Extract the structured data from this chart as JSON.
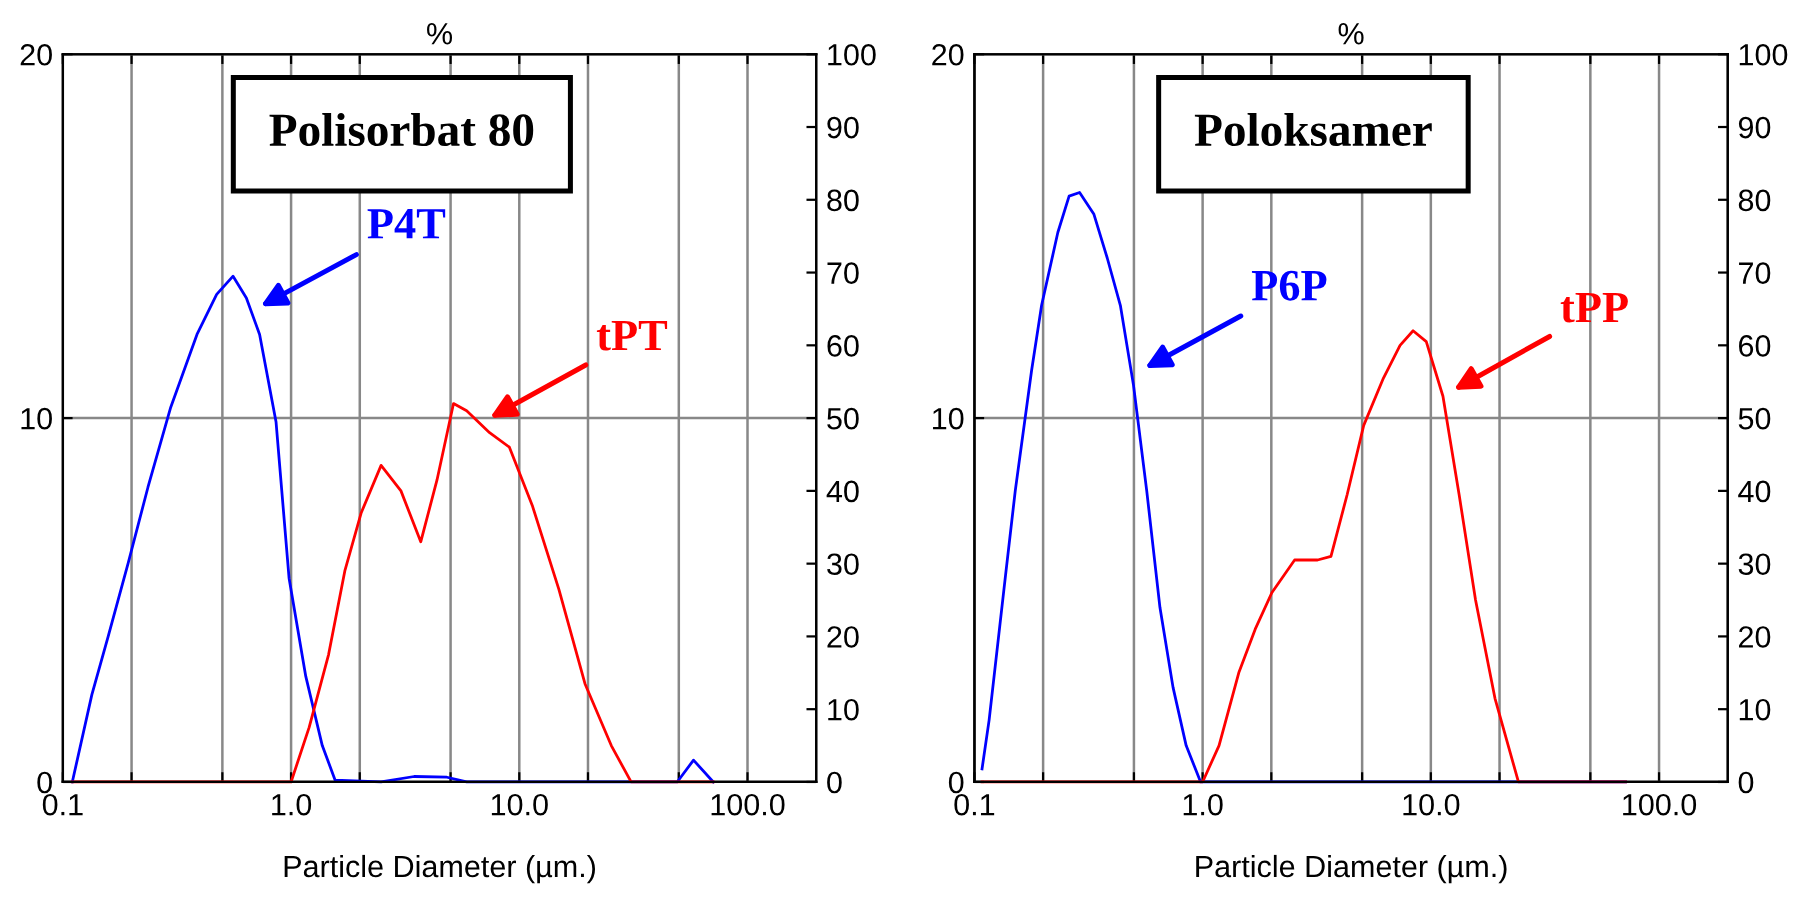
{
  "chart_data": [
    {
      "type": "line",
      "title": "Polisorbat 80",
      "xlabel": "Particle Diameter (µm.)",
      "log": "x",
      "xlim": [
        0.1,
        200
      ],
      "xticks": [
        {
          "value": 0.1,
          "label": "0.1"
        },
        {
          "value": 0.2,
          "label": null
        },
        {
          "value": 0.5,
          "label": null
        },
        {
          "value": 1,
          "label": "1.0"
        },
        {
          "value": 2,
          "label": null
        },
        {
          "value": 5,
          "label": null
        },
        {
          "value": 10,
          "label": "10.0"
        },
        {
          "value": 20,
          "label": null
        },
        {
          "value": 50,
          "label": null
        },
        {
          "value": 100,
          "label": "100.0"
        }
      ],
      "ylim": [
        0,
        20
      ],
      "yticks": [
        0,
        10,
        20
      ],
      "y2lim": [
        0,
        100
      ],
      "y2ticks": [
        0,
        10,
        20,
        30,
        40,
        50,
        60,
        70,
        80,
        90,
        100
      ],
      "grid": true,
      "marker": "none",
      "line_style": "solid",
      "series": [
        {
          "color": "#0000ff",
          "x": [
            0.11,
            0.134,
            0.158,
            0.193,
            0.236,
            0.297,
            0.387,
            0.472,
            0.557,
            0.637,
            0.728,
            0.859,
            0.98,
            1.16,
            1.37,
            1.56,
            2.48,
            3.46,
            4.82,
            5.88,
            49.2,
            58,
            70.8
          ],
          "values": [
            0,
            2.4,
            4.0,
            6.0,
            8.1,
            10.3,
            12.3,
            13.4,
            13.9,
            13.3,
            12.3,
            9.9,
            5.6,
            2.9,
            1.0,
            0.05,
            0,
            0.15,
            0.13,
            0,
            0,
            0.6,
            0
          ]
        },
        {
          "color": "#ff0000",
          "x": [
            0.11,
            1.0,
            1.2,
            1.46,
            1.72,
            2.03,
            2.48,
            3.03,
            3.7,
            4.36,
            5.15,
            5.88,
            7.41,
            9.05,
            11.4,
            14.9,
            19.4,
            25.3,
            30.9,
            70.8
          ],
          "values": [
            0,
            0,
            1.5,
            3.5,
            5.8,
            7.4,
            8.7,
            8.0,
            6.6,
            8.3,
            10.4,
            10.2,
            9.6,
            9.2,
            7.6,
            5.3,
            2.7,
            1.0,
            0,
            0
          ]
        }
      ],
      "annotations": [
        {
          "text": "P4T",
          "x": 0.7,
          "y": 13.0
        },
        {
          "text": "tPT",
          "x": 7.08,
          "y": 9.93
        },
        "%"
      ]
    },
    {
      "type": "line",
      "title": "Poloksamer",
      "xlabel": "Particle Diameter (µm.)",
      "log": "x",
      "xlim": [
        0.1,
        200
      ],
      "xticks": [
        {
          "value": 0.1,
          "label": "0.1"
        },
        {
          "value": 0.2,
          "label": null
        },
        {
          "value": 0.5,
          "label": null
        },
        {
          "value": 1,
          "label": "1.0"
        },
        {
          "value": 2,
          "label": null
        },
        {
          "value": 5,
          "label": null
        },
        {
          "value": 10,
          "label": "10.0"
        },
        {
          "value": 20,
          "label": null
        },
        {
          "value": 50,
          "label": null
        },
        {
          "value": 100,
          "label": "100.0"
        }
      ],
      "ylim": [
        0,
        20
      ],
      "yticks": [
        0,
        10,
        20
      ],
      "y2lim": [
        0,
        100
      ],
      "y2ticks": [
        0,
        10,
        20,
        30,
        40,
        50,
        60,
        70,
        80,
        90,
        100
      ],
      "grid": true,
      "marker": "none",
      "line_style": "solid",
      "series": [
        {
          "color": "#0000ff",
          "x": [
            0.108,
            0.116,
            0.137,
            0.151,
            0.178,
            0.197,
            0.232,
            0.26,
            0.289,
            0.334,
            0.382,
            0.436,
            0.498,
            0.569,
            0.65,
            0.742,
            0.847,
            0.98,
            71.3
          ],
          "values": [
            0.36,
            1.7,
            5.7,
            8.0,
            11.3,
            13.1,
            15.1,
            16.1,
            16.2,
            15.6,
            14.4,
            13.1,
            10.9,
            8.0,
            4.8,
            2.6,
            1.0,
            0,
            0
          ]
        },
        {
          "color": "#ff0000",
          "x": [
            0.108,
            1.0,
            1.18,
            1.44,
            1.7,
            2.01,
            2.53,
            3.19,
            3.65,
            4.3,
            5.08,
            6.2,
            7.33,
            8.36,
            9.55,
            11.3,
            13.3,
            15.7,
            19.1,
            24.2,
            71.3
          ],
          "values": [
            0,
            0,
            1.0,
            3.0,
            4.2,
            5.2,
            6.1,
            6.1,
            6.2,
            7.9,
            9.8,
            11.1,
            12.0,
            12.4,
            12.1,
            10.6,
            7.9,
            5.0,
            2.3,
            0,
            0
          ]
        }
      ],
      "annotations": [
        {
          "text": "P6P",
          "x": 0.532,
          "y": 11.3
        },
        {
          "text": "tPP",
          "x": 12.0,
          "y": 10.7
        },
        "%"
      ]
    }
  ]
}
